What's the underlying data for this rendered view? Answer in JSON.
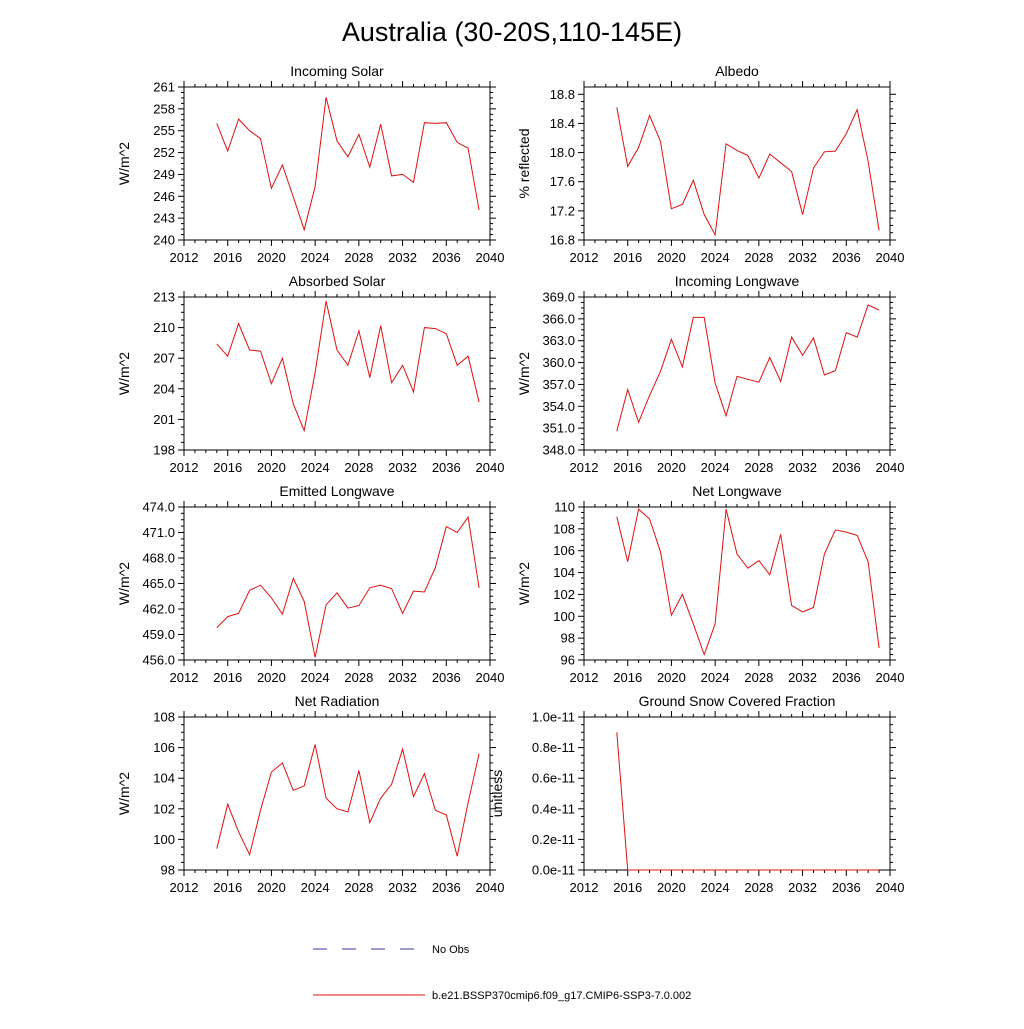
{
  "figure": {
    "title": "Australia (30-20S,110-145E)"
  },
  "legend": [
    {
      "label": "No Obs",
      "color": "#3a3aa6",
      "dash": true
    },
    {
      "label": "b.e21.BSSP370cmip6.f09_g17.CMIP6-SSP3-7.0.002",
      "color": "#e01010",
      "dash": false
    }
  ],
  "colors": {
    "series": "#e01010",
    "axis": "#000000"
  },
  "chart_data": [
    {
      "type": "line",
      "title": "Incoming Solar",
      "xlabel": "",
      "ylabel": "W/m^2",
      "xlim": [
        2012,
        2040
      ],
      "ylim": [
        240,
        261
      ],
      "x_ticks": [
        "2012",
        "2016",
        "2020",
        "2024",
        "2028",
        "2032",
        "2036",
        "2040"
      ],
      "y_ticks": [
        "240",
        "243",
        "246",
        "249",
        "252",
        "255",
        "258",
        "261"
      ],
      "y_tick_values": [
        240,
        243,
        246,
        249,
        252,
        255,
        258,
        261
      ],
      "x": [
        2015,
        2016,
        2017,
        2018,
        2019,
        2020,
        2021,
        2022,
        2023,
        2024,
        2025,
        2026,
        2027,
        2028,
        2029,
        2030,
        2031,
        2032,
        2033,
        2034,
        2035,
        2036,
        2037,
        2038,
        2039
      ],
      "series": [
        {
          "values": [
            256.0,
            252.2,
            256.6,
            255.0,
            253.9,
            247.1,
            250.3,
            245.9,
            241.4,
            247.3,
            259.6,
            253.6,
            251.4,
            254.5,
            250.0,
            255.9,
            248.8,
            249.0,
            247.9,
            256.1,
            256.0,
            256.1,
            253.4,
            252.6,
            244.1
          ]
        }
      ]
    },
    {
      "type": "line",
      "title": "Albedo",
      "xlabel": "",
      "ylabel": "% reflected",
      "xlim": [
        2012,
        2040
      ],
      "ylim": [
        16.8,
        18.9
      ],
      "x_ticks": [
        "2012",
        "2016",
        "2020",
        "2024",
        "2028",
        "2032",
        "2036",
        "2040"
      ],
      "y_ticks": [
        "16.8",
        "17.2",
        "17.6",
        "18.0",
        "18.4",
        "18.8"
      ],
      "y_tick_values": [
        16.8,
        17.2,
        17.6,
        18.0,
        18.4,
        18.8
      ],
      "x": [
        2015,
        2016,
        2017,
        2018,
        2019,
        2020,
        2021,
        2022,
        2023,
        2024,
        2025,
        2026,
        2027,
        2028,
        2029,
        2030,
        2031,
        2032,
        2033,
        2034,
        2035,
        2036,
        2037,
        2038,
        2039
      ],
      "series": [
        {
          "values": [
            18.62,
            17.81,
            18.07,
            18.51,
            18.15,
            17.23,
            17.29,
            17.62,
            17.15,
            16.87,
            18.12,
            18.03,
            17.96,
            17.65,
            17.98,
            17.86,
            17.74,
            17.15,
            17.79,
            18.01,
            18.02,
            18.26,
            18.59,
            17.88,
            16.93
          ]
        }
      ]
    },
    {
      "type": "line",
      "title": "Absorbed Solar",
      "xlabel": "",
      "ylabel": "W/m^2",
      "xlim": [
        2012,
        2040
      ],
      "ylim": [
        198,
        213
      ],
      "x_ticks": [
        "2012",
        "2016",
        "2020",
        "2024",
        "2028",
        "2032",
        "2036",
        "2040"
      ],
      "y_ticks": [
        "198",
        "201",
        "204",
        "207",
        "210",
        "213"
      ],
      "y_tick_values": [
        198,
        201,
        204,
        207,
        210,
        213
      ],
      "x": [
        2015,
        2016,
        2017,
        2018,
        2019,
        2020,
        2021,
        2022,
        2023,
        2024,
        2025,
        2026,
        2027,
        2028,
        2029,
        2030,
        2031,
        2032,
        2033,
        2034,
        2035,
        2036,
        2037,
        2038,
        2039
      ],
      "series": [
        {
          "values": [
            208.4,
            207.2,
            210.4,
            207.8,
            207.7,
            204.5,
            207.0,
            202.5,
            199.9,
            205.6,
            212.6,
            207.8,
            206.3,
            209.7,
            205.1,
            210.2,
            204.6,
            206.3,
            203.7,
            210.0,
            209.9,
            209.4,
            206.3,
            207.2,
            202.7
          ]
        }
      ]
    },
    {
      "type": "line",
      "title": "Incoming Longwave",
      "xlabel": "",
      "ylabel": "W/m^2",
      "xlim": [
        2012,
        2040
      ],
      "ylim": [
        348.0,
        369.0
      ],
      "x_ticks": [
        "2012",
        "2016",
        "2020",
        "2024",
        "2028",
        "2032",
        "2036",
        "2040"
      ],
      "y_ticks": [
        "348.0",
        "351.0",
        "354.0",
        "357.0",
        "360.0",
        "363.0",
        "366.0",
        "369.0"
      ],
      "y_tick_values": [
        348,
        351,
        354,
        357,
        360,
        363,
        366,
        369
      ],
      "x": [
        2015,
        2016,
        2017,
        2018,
        2019,
        2020,
        2021,
        2022,
        2023,
        2024,
        2025,
        2026,
        2027,
        2028,
        2029,
        2030,
        2031,
        2032,
        2033,
        2034,
        2035,
        2036,
        2037,
        2038,
        2039
      ],
      "series": [
        {
          "values": [
            350.6,
            356.3,
            351.8,
            355.5,
            358.8,
            363.2,
            359.4,
            366.2,
            366.2,
            357.2,
            352.7,
            358.1,
            357.7,
            357.3,
            360.7,
            357.4,
            363.5,
            361.0,
            363.4,
            358.3,
            358.9,
            364.1,
            363.5,
            367.9,
            367.2
          ]
        }
      ]
    },
    {
      "type": "line",
      "title": "Emitted Longwave",
      "xlabel": "",
      "ylabel": "W/m^2",
      "xlim": [
        2012,
        2040
      ],
      "ylim": [
        456.0,
        474.0
      ],
      "x_ticks": [
        "2012",
        "2016",
        "2020",
        "2024",
        "2028",
        "2032",
        "2036",
        "2040"
      ],
      "y_ticks": [
        "456.0",
        "459.0",
        "462.0",
        "465.0",
        "468.0",
        "471.0",
        "474.0"
      ],
      "y_tick_values": [
        456,
        459,
        462,
        465,
        468,
        471,
        474
      ],
      "x": [
        2015,
        2016,
        2017,
        2018,
        2019,
        2020,
        2021,
        2022,
        2023,
        2024,
        2025,
        2026,
        2027,
        2028,
        2029,
        2030,
        2031,
        2032,
        2033,
        2034,
        2035,
        2036,
        2037,
        2038,
        2039
      ],
      "series": [
        {
          "values": [
            459.8,
            461.1,
            461.5,
            464.2,
            464.8,
            463.3,
            461.4,
            465.6,
            462.9,
            456.3,
            462.5,
            463.9,
            462.1,
            462.4,
            464.5,
            464.8,
            464.4,
            461.5,
            464.1,
            464.0,
            466.9,
            471.7,
            471.0,
            472.8,
            464.5
          ]
        }
      ]
    },
    {
      "type": "line",
      "title": "Net Longwave",
      "xlabel": "",
      "ylabel": "W/m^2",
      "xlim": [
        2012,
        2040
      ],
      "ylim": [
        96,
        110
      ],
      "x_ticks": [
        "2012",
        "2016",
        "2020",
        "2024",
        "2028",
        "2032",
        "2036",
        "2040"
      ],
      "y_ticks": [
        "96",
        "98",
        "100",
        "102",
        "104",
        "106",
        "108",
        "110"
      ],
      "y_tick_values": [
        96,
        98,
        100,
        102,
        104,
        106,
        108,
        110
      ],
      "x": [
        2015,
        2016,
        2017,
        2018,
        2019,
        2020,
        2021,
        2022,
        2023,
        2024,
        2025,
        2026,
        2027,
        2028,
        2029,
        2030,
        2031,
        2032,
        2033,
        2034,
        2035,
        2036,
        2037,
        2038,
        2039
      ],
      "series": [
        {
          "values": [
            109.1,
            105.0,
            109.8,
            108.9,
            105.9,
            100.1,
            102.0,
            99.3,
            96.5,
            99.3,
            109.8,
            105.7,
            104.4,
            105.1,
            103.8,
            107.5,
            101.0,
            100.4,
            100.8,
            105.7,
            107.9,
            107.7,
            107.4,
            105.0,
            97.1
          ]
        }
      ]
    },
    {
      "type": "line",
      "title": "Net Radiation",
      "xlabel": "",
      "ylabel": "W/m^2",
      "xlim": [
        2012,
        2040
      ],
      "ylim": [
        98,
        108
      ],
      "x_ticks": [
        "2012",
        "2016",
        "2020",
        "2024",
        "2028",
        "2032",
        "2036",
        "2040"
      ],
      "y_ticks": [
        "98",
        "100",
        "102",
        "104",
        "106",
        "108"
      ],
      "y_tick_values": [
        98,
        100,
        102,
        104,
        106,
        108
      ],
      "x": [
        2015,
        2016,
        2017,
        2018,
        2019,
        2020,
        2021,
        2022,
        2023,
        2024,
        2025,
        2026,
        2027,
        2028,
        2029,
        2030,
        2031,
        2032,
        2033,
        2034,
        2035,
        2036,
        2037,
        2038,
        2039
      ],
      "series": [
        {
          "values": [
            99.4,
            102.3,
            100.5,
            99.0,
            101.9,
            104.4,
            105.0,
            103.2,
            103.5,
            106.2,
            102.7,
            102.0,
            101.8,
            104.5,
            101.1,
            102.7,
            103.6,
            105.9,
            102.8,
            104.3,
            101.9,
            101.6,
            98.9,
            102.4,
            105.6
          ]
        }
      ]
    },
    {
      "type": "line",
      "title": "Ground Snow Covered Fraction",
      "xlabel": "",
      "ylabel": "unitless",
      "xlim": [
        2012,
        2040
      ],
      "ylim": [
        0.0,
        1e-11
      ],
      "x_ticks": [
        "2012",
        "2016",
        "2020",
        "2024",
        "2028",
        "2032",
        "2036",
        "2040"
      ],
      "y_ticks": [
        "0.0e-11",
        "0.2e-11",
        "0.4e-11",
        "0.6e-11",
        "0.8e-11",
        "1.0e-11"
      ],
      "y_tick_values": [
        0,
        2e-12,
        4e-12,
        6e-12,
        8e-12,
        1e-11
      ],
      "x": [
        2015,
        2016,
        2017,
        2018,
        2019,
        2020,
        2021,
        2022,
        2023,
        2024,
        2025,
        2026,
        2027,
        2028,
        2029,
        2030,
        2031,
        2032,
        2033,
        2034,
        2035,
        2036,
        2037,
        2038,
        2039
      ],
      "series": [
        {
          "values": [
            9e-12,
            0,
            0,
            0,
            0,
            0,
            0,
            0,
            0,
            0,
            0,
            0,
            0,
            0,
            0,
            0,
            0,
            0,
            0,
            0,
            0,
            0,
            0,
            0,
            0
          ]
        }
      ]
    }
  ]
}
